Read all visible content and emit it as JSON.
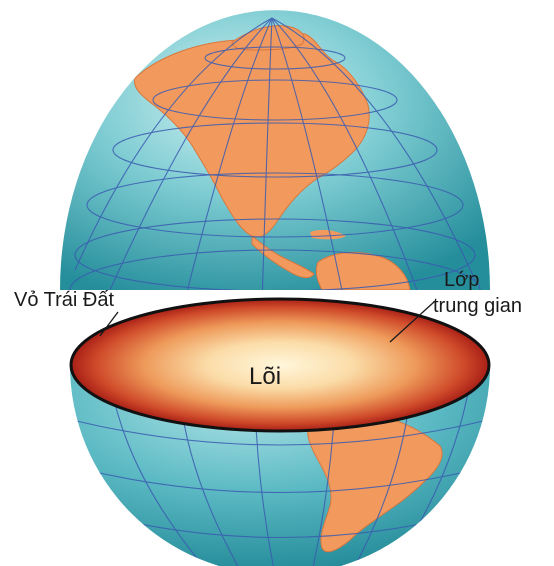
{
  "diagram": {
    "labels": {
      "crust": "Vỏ Trái Đất",
      "mantle_line1": "Lớp",
      "mantle_line2": "trung gian",
      "core": "Lõi"
    },
    "colors": {
      "ocean_light": "#c9ecee",
      "ocean_mid": "#5fbcc6",
      "ocean_dark": "#1f8a98",
      "land": "#f29a5e",
      "land_edge": "#d9773d",
      "grid": "#3a5bb0",
      "core_center": "#fff6d8",
      "core_mid": "#f3b06a",
      "mantle_outer": "#b8261c",
      "crust_rim": "#111111"
    }
  }
}
